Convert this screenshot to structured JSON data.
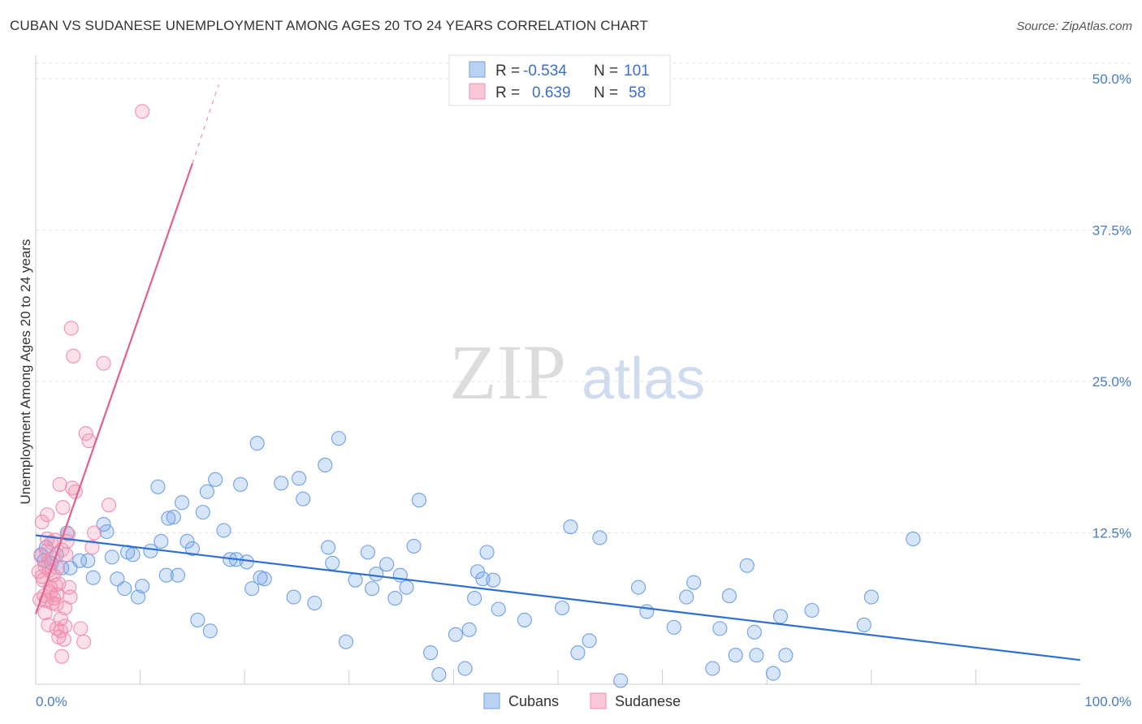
{
  "title": "CUBAN VS SUDANESE UNEMPLOYMENT AMONG AGES 20 TO 24 YEARS CORRELATION CHART",
  "source": "Source: ZipAtlas.com",
  "watermark": {
    "zip": "ZIP",
    "atlas": "atlas"
  },
  "legend": {
    "rows": [
      {
        "r_label": "R =",
        "r_value": "-0.534",
        "n_label": "N =",
        "n_value": "101",
        "color": "#6fa0e6"
      },
      {
        "r_label": "R =",
        "r_value": "0.639",
        "n_label": "N =",
        "n_value": "58",
        "color": "#f08fb0"
      }
    ]
  },
  "bottom_legend": [
    "Cubans",
    "Sudanese"
  ],
  "chart_data": {
    "type": "scatter",
    "title": "CUBAN VS SUDANESE UNEMPLOYMENT AMONG AGES 20 TO 24 YEARS CORRELATION CHART",
    "xlabel": "",
    "ylabel": "Unemployment Among Ages 20 to 24 years",
    "xlim": [
      0,
      100
    ],
    "ylim": [
      0,
      50
    ],
    "x_tick_labels": [
      "0.0%",
      "100.0%"
    ],
    "y_ticks": [
      12.5,
      25.0,
      37.5,
      50.0
    ],
    "y_tick_labels": [
      "12.5%",
      "25.0%",
      "37.5%",
      "50.0%"
    ],
    "grid": true,
    "legend_position": "top-center",
    "series": [
      {
        "name": "Cubans",
        "color": "#6fa0e6",
        "line_color": "#2f6fcf",
        "trend": {
          "x": [
            0,
            100
          ],
          "y": [
            12.3,
            2.0
          ],
          "dashed_from": null
        },
        "points": [
          [
            0.5,
            10.7
          ],
          [
            0.8,
            10.2
          ],
          [
            1.0,
            11.3
          ],
          [
            1.5,
            10.0
          ],
          [
            2.0,
            10.7
          ],
          [
            2.5,
            9.6
          ],
          [
            3.0,
            12.5
          ],
          [
            3.3,
            9.6
          ],
          [
            4.2,
            10.2
          ],
          [
            5.0,
            10.2
          ],
          [
            5.5,
            8.8
          ],
          [
            6.5,
            13.2
          ],
          [
            6.8,
            12.6
          ],
          [
            7.3,
            10.5
          ],
          [
            7.8,
            8.7
          ],
          [
            8.5,
            7.9
          ],
          [
            8.8,
            10.9
          ],
          [
            9.3,
            10.7
          ],
          [
            9.8,
            7.2
          ],
          [
            10.2,
            8.1
          ],
          [
            11.0,
            11.0
          ],
          [
            11.7,
            16.3
          ],
          [
            12.0,
            11.8
          ],
          [
            12.5,
            9.0
          ],
          [
            12.7,
            13.7
          ],
          [
            13.2,
            13.8
          ],
          [
            13.6,
            9.0
          ],
          [
            14.0,
            15.0
          ],
          [
            14.5,
            11.8
          ],
          [
            15.0,
            11.2
          ],
          [
            15.5,
            5.3
          ],
          [
            16.0,
            14.2
          ],
          [
            16.4,
            15.9
          ],
          [
            16.7,
            4.4
          ],
          [
            17.2,
            16.9
          ],
          [
            18.0,
            12.7
          ],
          [
            18.6,
            10.3
          ],
          [
            19.2,
            10.3
          ],
          [
            19.6,
            16.5
          ],
          [
            20.2,
            10.1
          ],
          [
            20.7,
            7.9
          ],
          [
            21.2,
            19.9
          ],
          [
            21.5,
            8.8
          ],
          [
            21.9,
            8.7
          ],
          [
            23.5,
            16.6
          ],
          [
            24.7,
            7.2
          ],
          [
            25.2,
            17.0
          ],
          [
            25.6,
            15.3
          ],
          [
            26.7,
            6.7
          ],
          [
            27.7,
            18.1
          ],
          [
            28.0,
            11.3
          ],
          [
            28.4,
            10.0
          ],
          [
            29.0,
            20.3
          ],
          [
            29.7,
            3.5
          ],
          [
            30.6,
            8.6
          ],
          [
            31.8,
            10.9
          ],
          [
            32.2,
            7.9
          ],
          [
            32.6,
            9.1
          ],
          [
            33.6,
            9.9
          ],
          [
            34.4,
            7.1
          ],
          [
            34.9,
            9.0
          ],
          [
            35.5,
            8.0
          ],
          [
            36.2,
            11.4
          ],
          [
            36.7,
            15.2
          ],
          [
            37.8,
            2.6
          ],
          [
            38.6,
            0.8
          ],
          [
            40.2,
            4.1
          ],
          [
            41.1,
            1.3
          ],
          [
            41.5,
            4.5
          ],
          [
            42.0,
            7.1
          ],
          [
            42.3,
            9.3
          ],
          [
            42.8,
            8.7
          ],
          [
            43.2,
            10.9
          ],
          [
            43.8,
            8.6
          ],
          [
            44.3,
            6.2
          ],
          [
            46.8,
            5.3
          ],
          [
            50.4,
            6.3
          ],
          [
            51.2,
            13.0
          ],
          [
            51.9,
            2.6
          ],
          [
            53.0,
            3.6
          ],
          [
            54.0,
            12.1
          ],
          [
            56.0,
            0.3
          ],
          [
            57.7,
            8.0
          ],
          [
            58.5,
            6.0
          ],
          [
            61.1,
            4.7
          ],
          [
            62.3,
            7.2
          ],
          [
            63.0,
            8.4
          ],
          [
            64.8,
            1.3
          ],
          [
            65.5,
            4.6
          ],
          [
            66.4,
            7.3
          ],
          [
            67.0,
            2.4
          ],
          [
            68.1,
            9.8
          ],
          [
            68.8,
            4.3
          ],
          [
            69.0,
            2.4
          ],
          [
            70.6,
            0.9
          ],
          [
            71.3,
            5.6
          ],
          [
            71.8,
            2.4
          ],
          [
            74.3,
            6.1
          ],
          [
            79.3,
            4.9
          ],
          [
            80.0,
            7.2
          ],
          [
            84.0,
            12.0
          ]
        ]
      },
      {
        "name": "Sudanese",
        "color": "#f08fb0",
        "line_color": "#e0608f",
        "trend": {
          "x": [
            0,
            15
          ],
          "y": [
            5.8,
            43.0
          ],
          "dashed_to": [
            17.5,
            49.5
          ]
        },
        "points": [
          [
            0.3,
            9.3
          ],
          [
            0.5,
            10.6
          ],
          [
            0.6,
            13.4
          ],
          [
            0.7,
            8.6
          ],
          [
            0.8,
            7.3
          ],
          [
            0.9,
            9.7
          ],
          [
            1.0,
            11.0
          ],
          [
            1.0,
            6.9
          ],
          [
            1.1,
            14.0
          ],
          [
            1.2,
            4.9
          ],
          [
            1.3,
            9.4
          ],
          [
            1.4,
            8.0
          ],
          [
            1.5,
            11.7
          ],
          [
            1.6,
            10.4
          ],
          [
            1.6,
            6.7
          ],
          [
            1.7,
            7.1
          ],
          [
            1.8,
            11.9
          ],
          [
            1.9,
            8.2
          ],
          [
            2.0,
            4.6
          ],
          [
            2.0,
            6.6
          ],
          [
            2.1,
            9.6
          ],
          [
            2.2,
            3.9
          ],
          [
            2.2,
            8.3
          ],
          [
            2.3,
            16.5
          ],
          [
            2.4,
            4.4
          ],
          [
            2.5,
            11.1
          ],
          [
            2.5,
            2.3
          ],
          [
            2.6,
            14.6
          ],
          [
            2.7,
            3.7
          ],
          [
            2.8,
            4.8
          ],
          [
            2.9,
            10.7
          ],
          [
            3.0,
            11.8
          ],
          [
            3.1,
            12.4
          ],
          [
            3.2,
            8.0
          ],
          [
            3.3,
            7.2
          ],
          [
            3.4,
            29.4
          ],
          [
            3.5,
            16.2
          ],
          [
            3.6,
            27.1
          ],
          [
            3.8,
            15.9
          ],
          [
            4.3,
            4.6
          ],
          [
            4.6,
            3.5
          ],
          [
            4.8,
            20.7
          ],
          [
            5.1,
            20.1
          ],
          [
            5.4,
            11.3
          ],
          [
            5.6,
            12.5
          ],
          [
            6.5,
            26.5
          ],
          [
            7.0,
            14.8
          ],
          [
            10.2,
            47.3
          ],
          [
            0.4,
            7.0
          ],
          [
            0.6,
            8.9
          ],
          [
            0.9,
            5.9
          ],
          [
            1.2,
            10.1
          ],
          [
            1.4,
            7.6
          ],
          [
            1.7,
            9.0
          ],
          [
            2.0,
            7.4
          ],
          [
            2.4,
            5.4
          ],
          [
            2.8,
            6.3
          ],
          [
            1.1,
            12.0
          ]
        ]
      }
    ]
  }
}
